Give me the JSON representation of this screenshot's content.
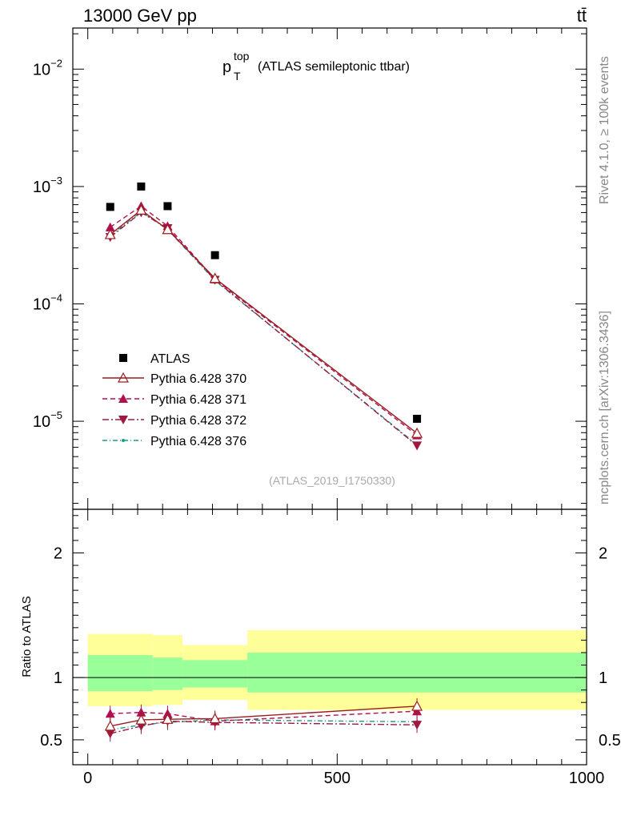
{
  "header": {
    "left": "13000 GeV pp",
    "right": "tt̄"
  },
  "side_text": {
    "rivet": "Rivet 4.1.0, ≥ 100k events",
    "mcplots": "mcplots.cern.ch [arXiv:1306.3436]"
  },
  "chart_data": {
    "type": "line",
    "title": {
      "main": "p",
      "sup": "top",
      "sub": "T",
      "rest": "(ATLAS semileptonic ttbar)"
    },
    "analysis_label": "(ATLAS_2019_I1750330)",
    "xlim": [
      -30,
      1000
    ],
    "main_ylim_log": [
      -5.75,
      -1.65
    ],
    "y_tick_labels": [
      {
        "base": "10",
        "exp": "−2"
      },
      {
        "base": "10",
        "exp": "−3"
      },
      {
        "base": "10",
        "exp": "−4"
      },
      {
        "base": "10",
        "exp": "−5"
      }
    ],
    "y_tick_exponents": [
      -2,
      -3,
      -4,
      -5
    ],
    "x_ticks": [
      0,
      500,
      1000
    ],
    "x_tick_labels": [
      "0",
      "500",
      "1000"
    ],
    "ratio_ylim": [
      0.3,
      2.35
    ],
    "ratio_ticks": [
      0.5,
      1,
      2
    ],
    "ratio_tick_labels": [
      "0.5",
      "1",
      "2"
    ],
    "ratio_ylabel": "Ratio to ATLAS",
    "bins": [
      0,
      130,
      190,
      320,
      1000
    ],
    "x": [
      45,
      107,
      160,
      255,
      660
    ],
    "data": {
      "name": "ATLAS",
      "values": [
        0.00067,
        0.001,
        0.00068,
        0.00026,
        1.05e-05
      ]
    },
    "band_yellow": [
      [
        0.77,
        1.35
      ],
      [
        0.78,
        1.34
      ],
      [
        0.82,
        1.26
      ],
      [
        0.74,
        1.38
      ]
    ],
    "band_green": [
      [
        0.89,
        1.18
      ],
      [
        0.9,
        1.16
      ],
      [
        0.92,
        1.14
      ],
      [
        0.88,
        1.2
      ]
    ],
    "series": [
      {
        "name": "Pythia 6.428 370",
        "color": "#9b1c1c",
        "dash": "",
        "marker": "tri-up-open",
        "values": [
          0.00039,
          0.00063,
          0.00043,
          0.000165,
          7.9e-06
        ],
        "ratio": [
          0.61,
          0.66,
          0.665,
          0.67,
          0.77
        ]
      },
      {
        "name": "Pythia 6.428 371",
        "color": "#b0104f",
        "dash": "6,4",
        "marker": "tri-up",
        "values": [
          0.00045,
          0.00068,
          0.00046,
          0.000162,
          7.6e-06
        ],
        "ratio": [
          0.71,
          0.72,
          0.71,
          0.65,
          0.73
        ]
      },
      {
        "name": "Pythia 6.428 372",
        "color": "#a01840",
        "dash": "8,3,2,3",
        "marker": "tri-down",
        "values": [
          0.00037,
          0.0006,
          0.00044,
          0.00016,
          6.2e-06
        ],
        "ratio": [
          0.55,
          0.61,
          0.65,
          0.64,
          0.62
        ]
      },
      {
        "name": "Pythia 6.428 376",
        "color": "#1a9a8a",
        "dash": "6,3,1,3",
        "marker": "dot",
        "values": [
          0.00038,
          0.00061,
          0.00043,
          0.000158,
          6.3e-06
        ],
        "ratio": [
          0.58,
          0.62,
          0.64,
          0.66,
          0.645
        ]
      }
    ]
  }
}
